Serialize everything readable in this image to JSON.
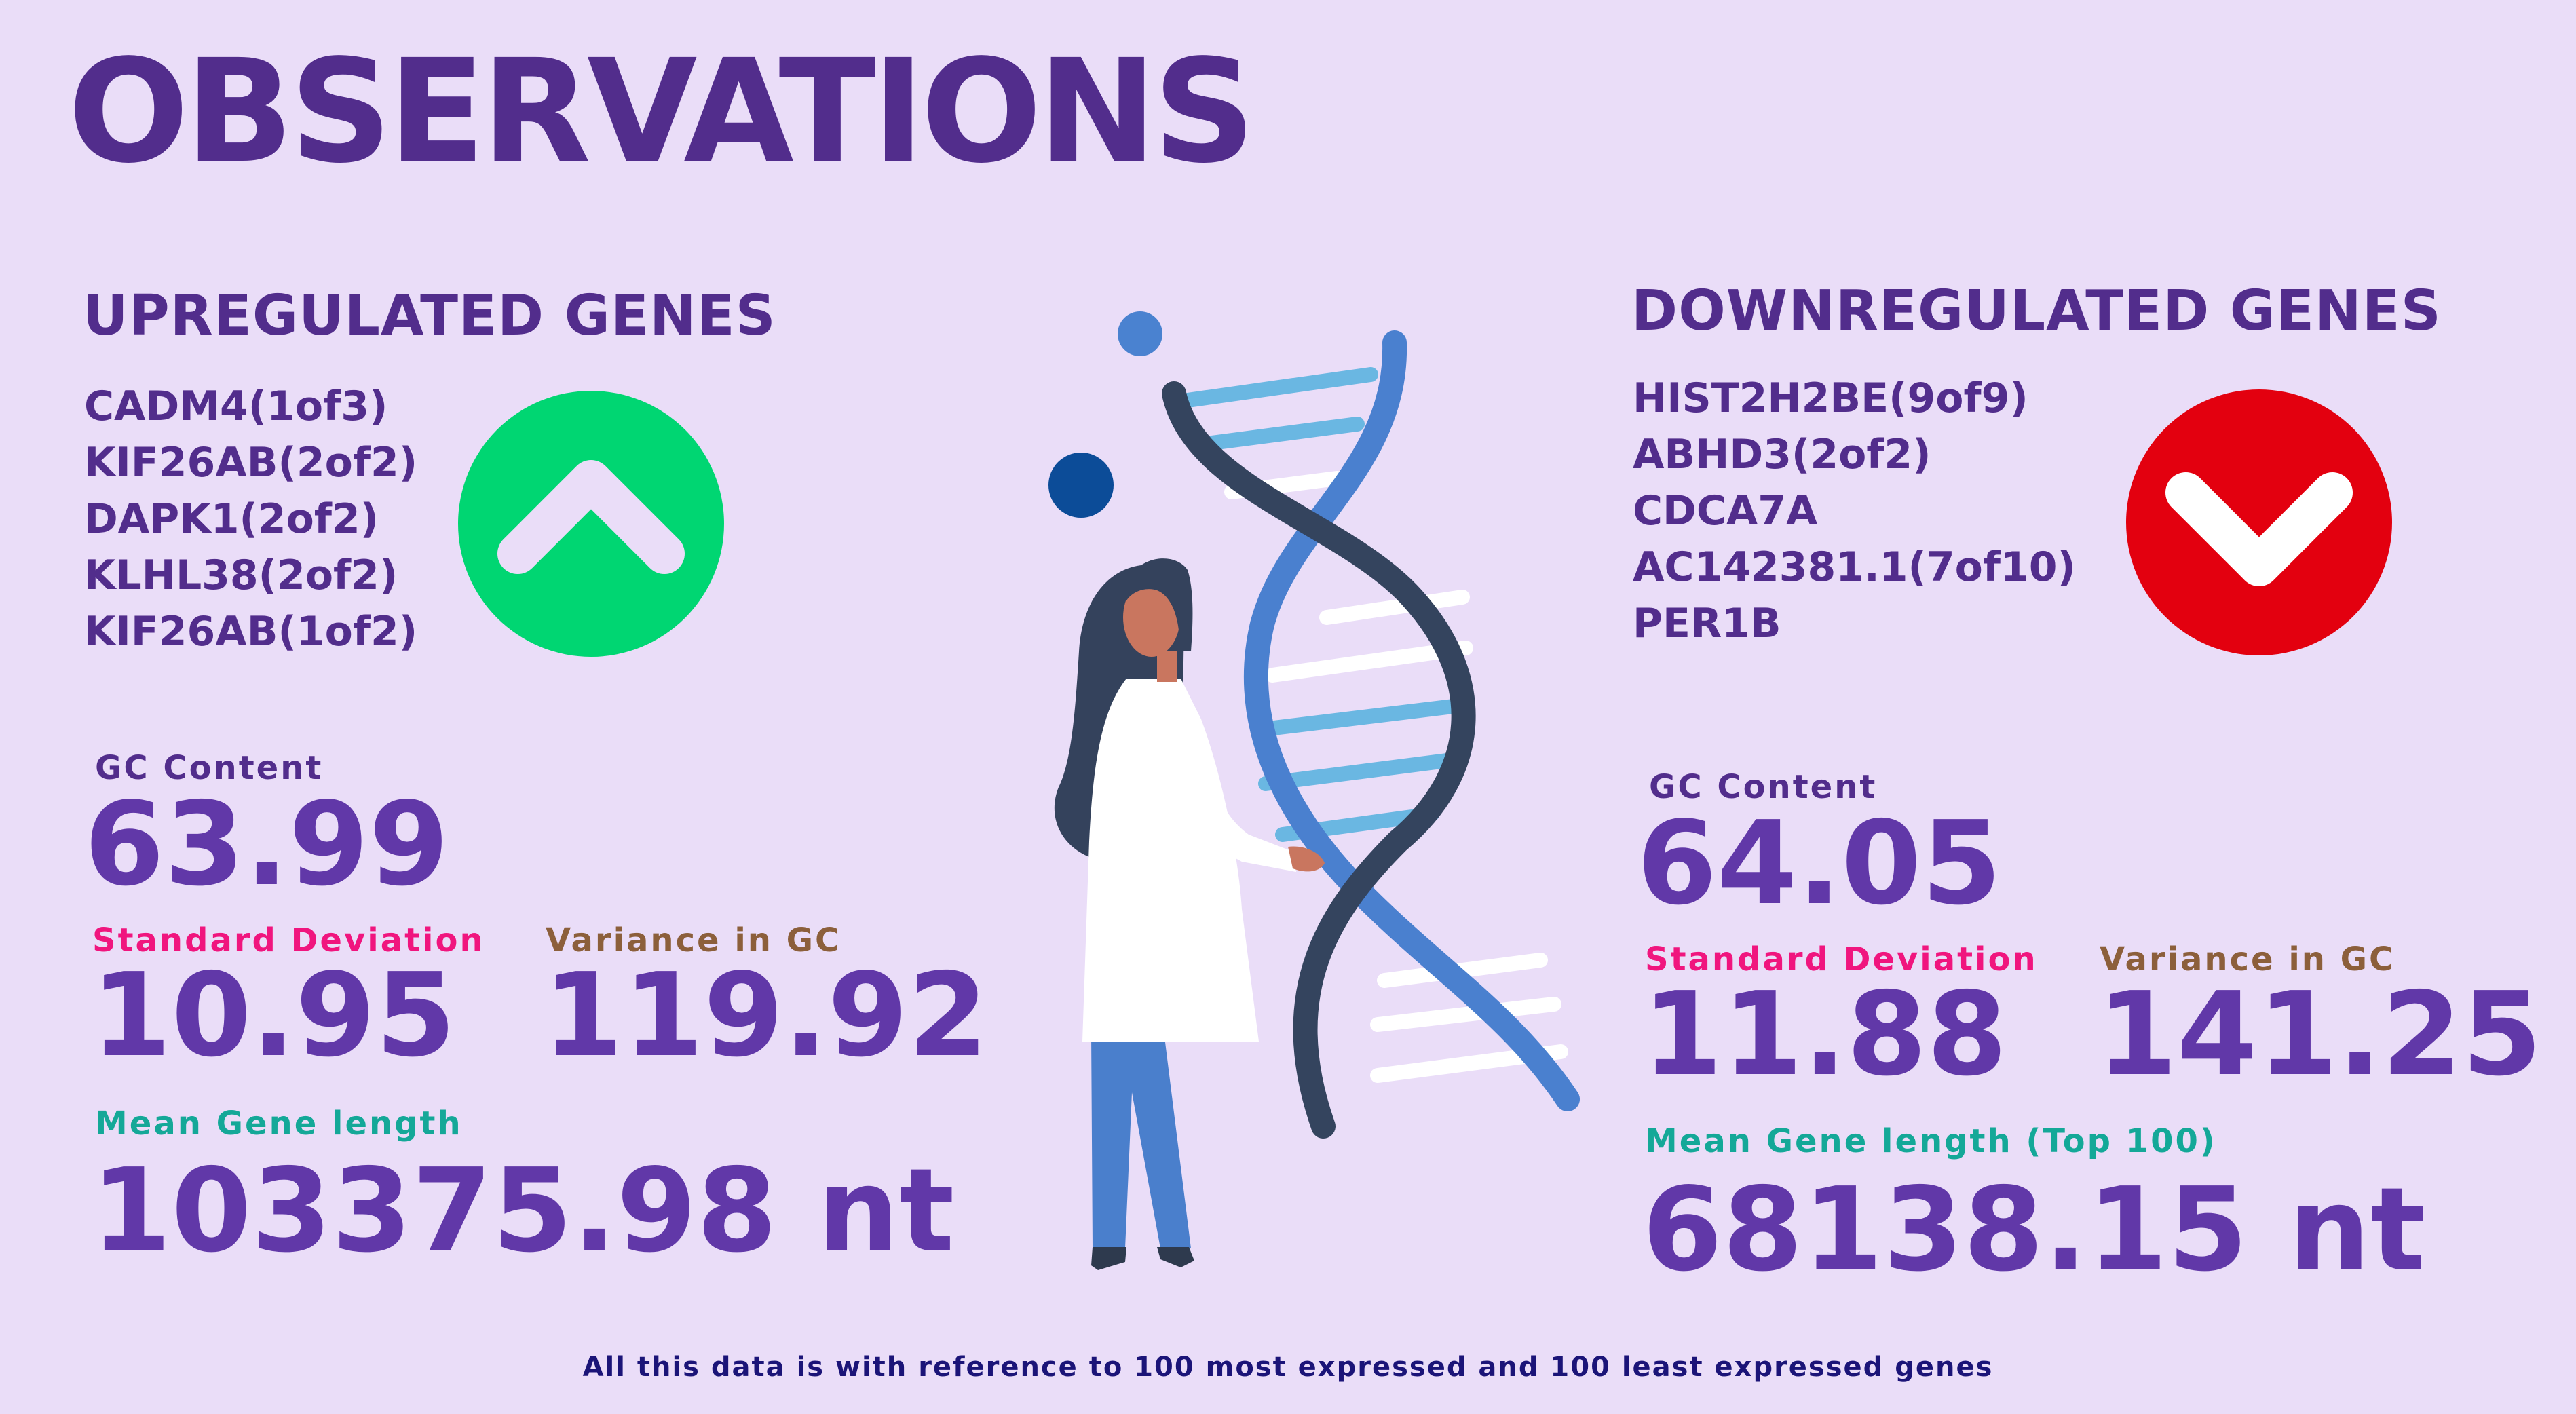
{
  "title": "OBSERVATIONS",
  "up": {
    "heading": "UPREGULATED GENES",
    "genes": [
      "CADM4(1of3)",
      "KIF26AB(2of2)",
      "DAPK1(2of2)",
      "KLHL38(2of2)",
      "KIF26AB(1of2)"
    ],
    "badge_icon": "chevron-up-icon",
    "badge_color": "#00D672",
    "gc_label": "GC Content",
    "gc_value": "63.99",
    "sd_label": "Standard Deviation",
    "sd_value": "10.95",
    "var_label": "Variance in GC",
    "var_value": "119.92",
    "len_label": "Mean Gene length",
    "len_value": "103375.98 nt"
  },
  "down": {
    "heading": "DOWNREGULATED GENES",
    "genes": [
      "HIST2H2BE(9of9)",
      "ABHD3(2of2)",
      "CDCA7A",
      "AC142381.1(7of10)",
      "PER1B"
    ],
    "badge_icon": "chevron-down-icon",
    "badge_color": "#E3000F",
    "gc_label": "GC Content",
    "gc_value": "64.05",
    "sd_label": "Standard Deviation",
    "sd_value": "11.88",
    "var_label": "Variance in GC",
    "var_value": "141.25",
    "len_label": "Mean Gene length (Top 100)",
    "len_value": "68138.15 nt"
  },
  "footnote": "All this data is with reference to 100 most expressed and 100 least expressed genes",
  "illustration": "scientist-with-dna-helix",
  "colors": {
    "background": "#EADDF8",
    "heading": "#522D8C",
    "value": "#6138A8",
    "sd_label": "#F0157E",
    "var_label": "#8C5F3B",
    "len_label": "#14A898",
    "footnote": "#1B1478"
  }
}
